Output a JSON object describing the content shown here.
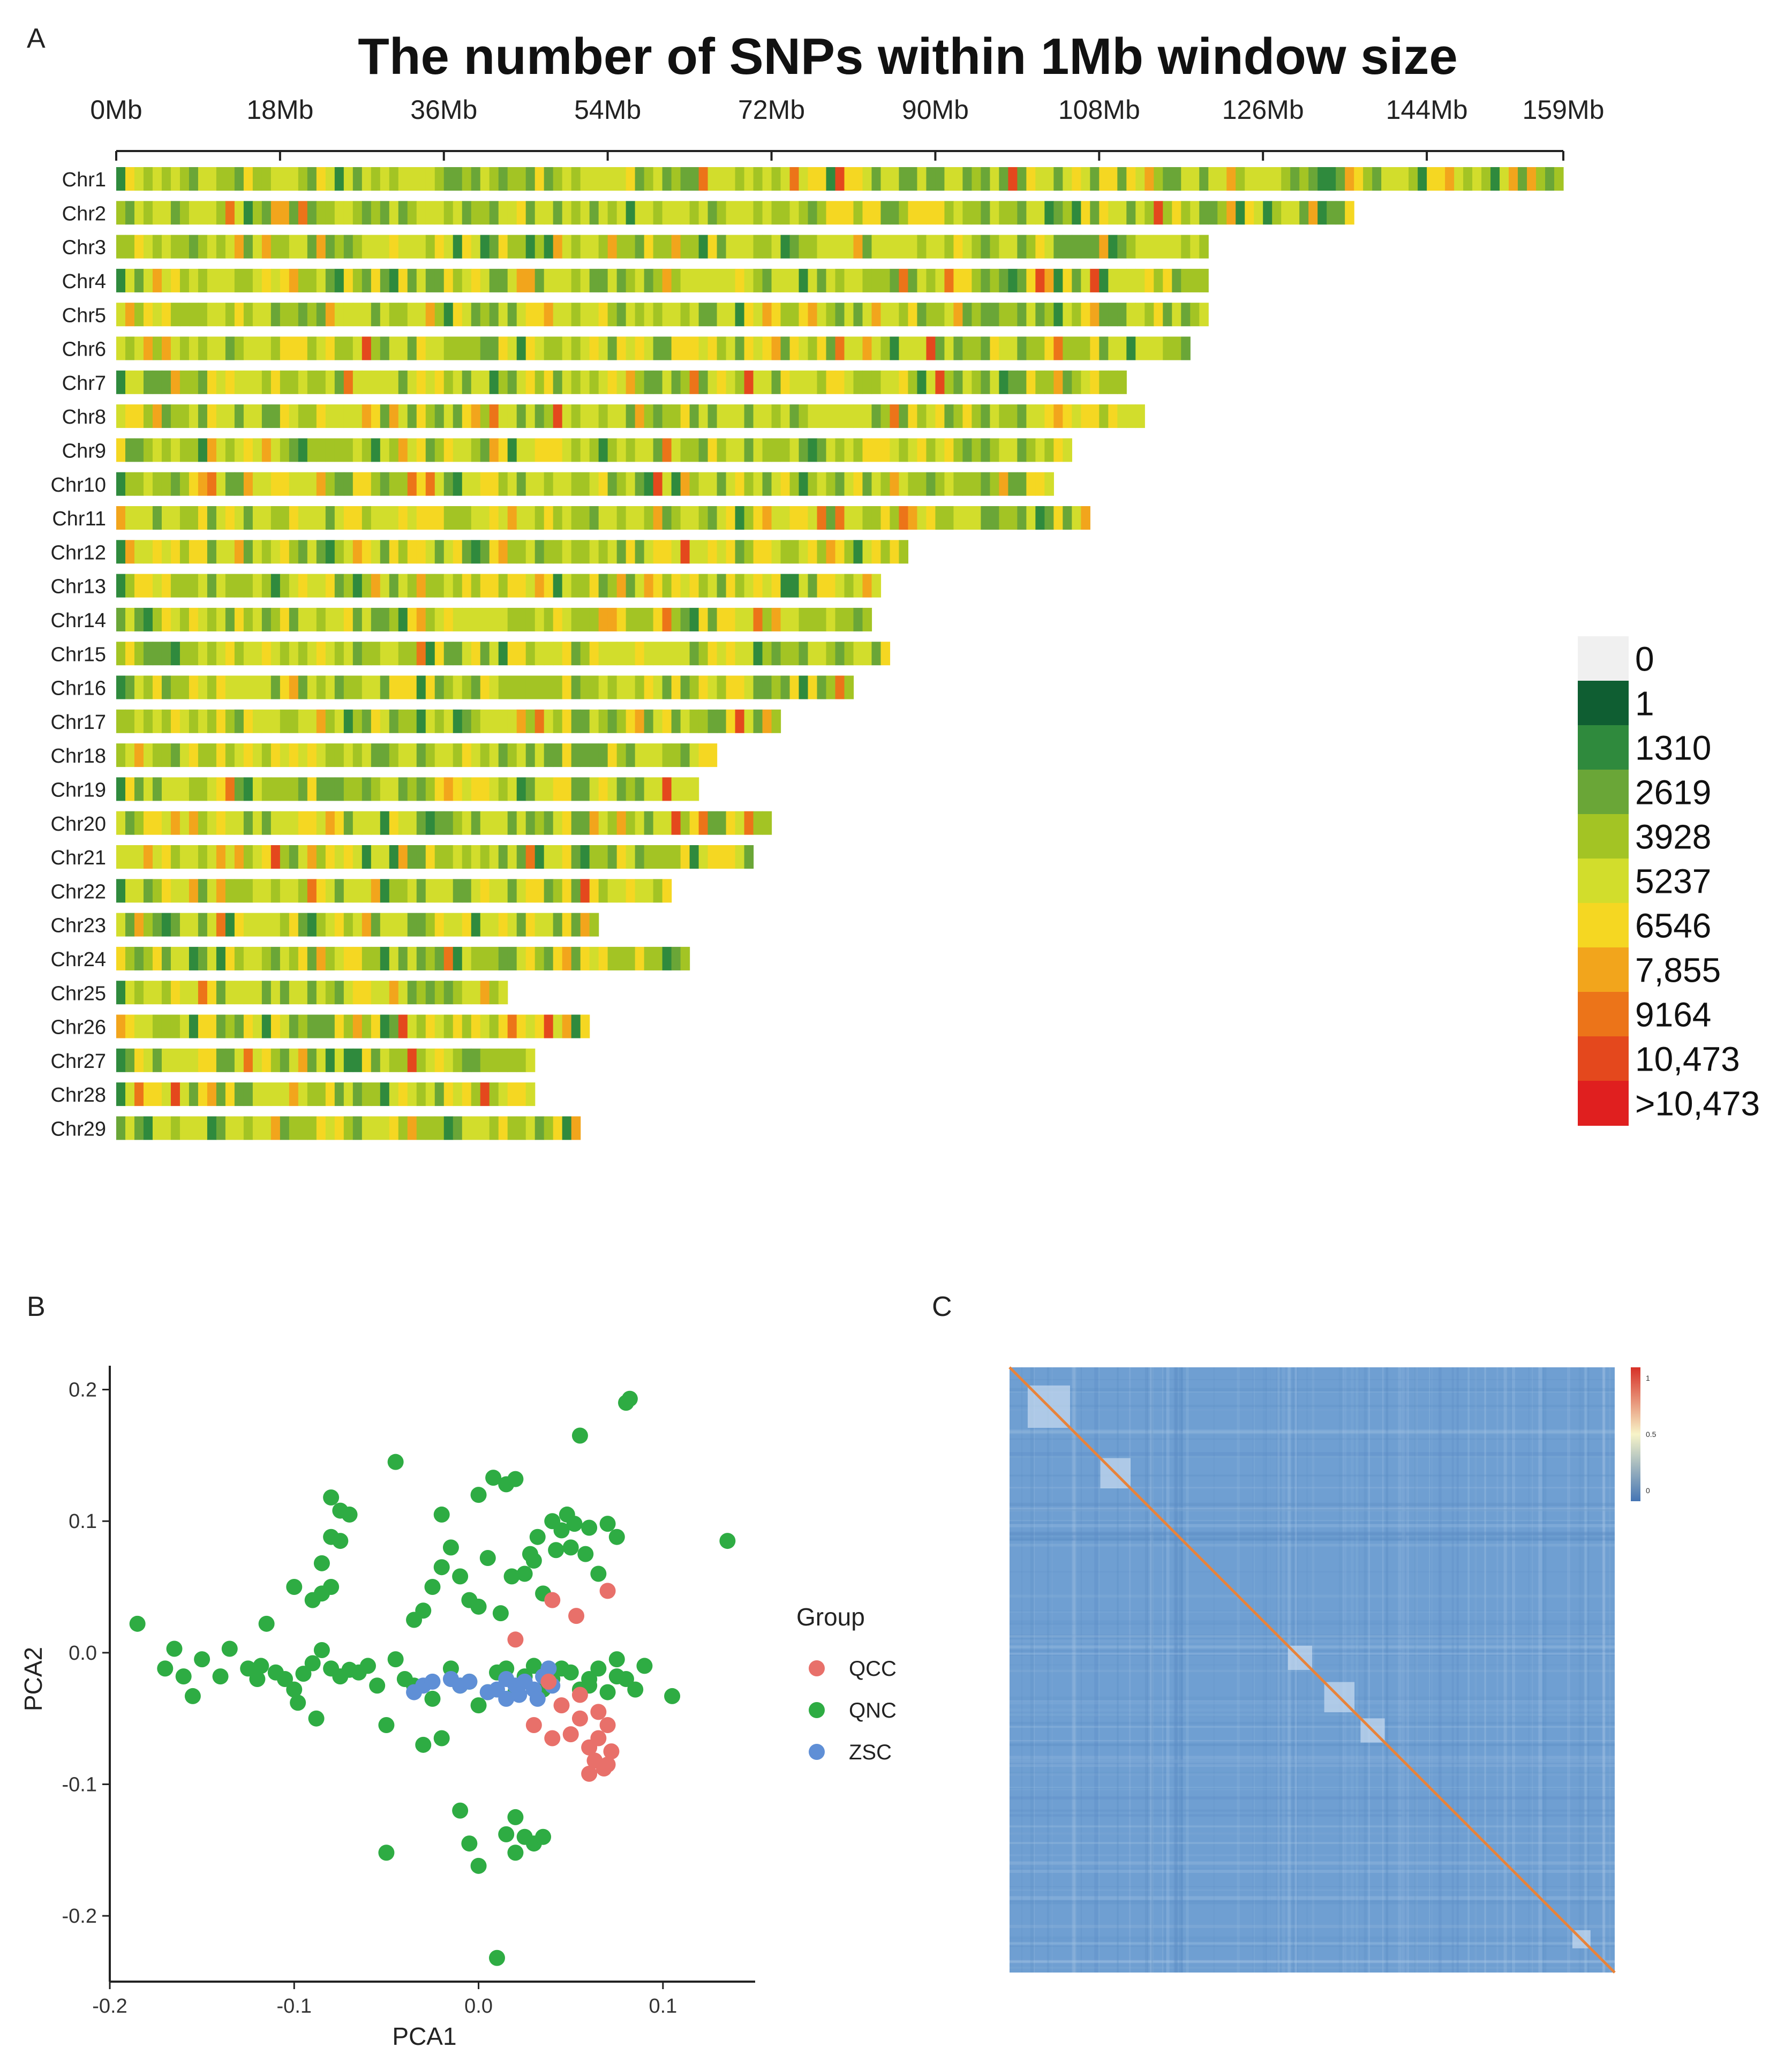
{
  "panels": {
    "a": {
      "letter": "A"
    },
    "b": {
      "letter": "B"
    },
    "c": {
      "letter": "C"
    }
  },
  "chart_data": [
    {
      "type": "heatmap",
      "title": "The number of SNPs within 1Mb window size",
      "x_ticks": [
        "0Mb",
        "18Mb",
        "36Mb",
        "54Mb",
        "72Mb",
        "90Mb",
        "108Mb",
        "126Mb",
        "144Mb",
        "159Mb"
      ],
      "x_tick_values_mb": [
        0,
        18,
        36,
        54,
        72,
        90,
        108,
        126,
        144,
        159
      ],
      "chromosomes": [
        "Chr1",
        "Chr2",
        "Chr3",
        "Chr4",
        "Chr5",
        "Chr6",
        "Chr7",
        "Chr8",
        "Chr9",
        "Chr10",
        "Chr11",
        "Chr12",
        "Chr13",
        "Chr14",
        "Chr15",
        "Chr16",
        "Chr17",
        "Chr18",
        "Chr19",
        "Chr20",
        "Chr21",
        "Chr22",
        "Chr23",
        "Chr24",
        "Chr25",
        "Chr26",
        "Chr27",
        "Chr28",
        "Chr29"
      ],
      "lengths_mb": [
        159,
        136,
        120,
        120,
        120,
        118,
        111,
        113,
        105,
        103,
        107,
        87,
        84,
        83,
        85,
        81,
        73,
        66,
        64,
        72,
        70,
        61,
        53,
        63,
        43,
        52,
        46,
        46,
        51
      ],
      "legend": {
        "labels": [
          "0",
          "1",
          "1310",
          "2619",
          "3928",
          "5237",
          "6546",
          "7,855",
          "9164",
          "10,473",
          ">10,473"
        ],
        "colors": [
          "#f0f0f0",
          "#0f5e32",
          "#2f8a3d",
          "#6aa637",
          "#a3c424",
          "#d2dd2c",
          "#f5d722",
          "#f2a51c",
          "#ec7419",
          "#e4481d",
          "#e01f1f"
        ],
        "placement": "right"
      }
    },
    {
      "type": "scatter",
      "xlabel": "PCA1",
      "ylabel": "PCA2",
      "xlim": [
        -0.2,
        0.15
      ],
      "ylim": [
        -0.25,
        0.21
      ],
      "x_ticks": [
        "-0.2",
        "-0.1",
        "0.0",
        "0.1"
      ],
      "x_tick_values": [
        -0.2,
        -0.1,
        0.0,
        0.1
      ],
      "y_ticks": [
        "-0.2",
        "-0.1",
        "0.0",
        "0.1",
        "0.2"
      ],
      "y_tick_values": [
        -0.2,
        -0.1,
        0.0,
        0.1,
        0.2
      ],
      "legend_title": "Group",
      "legend_placement": "right",
      "series": [
        {
          "name": "QCC",
          "color": "#e8706a",
          "points": [
            [
              0.04,
              0.04
            ],
            [
              0.07,
              0.047
            ],
            [
              0.053,
              0.028
            ],
            [
              0.02,
              0.01
            ],
            [
              0.038,
              -0.022
            ],
            [
              0.045,
              -0.04
            ],
            [
              0.055,
              -0.05
            ],
            [
              0.03,
              -0.055
            ],
            [
              0.05,
              -0.062
            ],
            [
              0.065,
              -0.065
            ],
            [
              0.07,
              -0.055
            ],
            [
              0.06,
              -0.072
            ],
            [
              0.072,
              -0.075
            ],
            [
              0.063,
              -0.082
            ],
            [
              0.07,
              -0.085
            ],
            [
              0.06,
              -0.092
            ],
            [
              0.068,
              -0.088
            ],
            [
              0.04,
              -0.065
            ],
            [
              0.055,
              -0.032
            ],
            [
              0.065,
              -0.045
            ]
          ]
        },
        {
          "name": "QNC",
          "color": "#2eac43",
          "points": [
            [
              -0.185,
              0.022
            ],
            [
              -0.17,
              -0.012
            ],
            [
              -0.165,
              0.003
            ],
            [
              -0.16,
              -0.018
            ],
            [
              -0.155,
              -0.033
            ],
            [
              -0.15,
              -0.005
            ],
            [
              -0.14,
              -0.018
            ],
            [
              -0.135,
              0.003
            ],
            [
              -0.125,
              -0.012
            ],
            [
              -0.12,
              -0.02
            ],
            [
              -0.118,
              -0.01
            ],
            [
              -0.115,
              0.022
            ],
            [
              -0.11,
              -0.015
            ],
            [
              -0.105,
              -0.02
            ],
            [
              -0.1,
              -0.028
            ],
            [
              -0.098,
              -0.038
            ],
            [
              -0.095,
              -0.016
            ],
            [
              -0.09,
              -0.008
            ],
            [
              -0.088,
              -0.05
            ],
            [
              -0.085,
              0.002
            ],
            [
              -0.08,
              -0.012
            ],
            [
              -0.075,
              -0.018
            ],
            [
              -0.07,
              -0.013
            ],
            [
              -0.065,
              -0.015
            ],
            [
              -0.06,
              -0.01
            ],
            [
              -0.055,
              -0.025
            ],
            [
              -0.05,
              -0.055
            ],
            [
              -0.045,
              -0.005
            ],
            [
              -0.04,
              -0.02
            ],
            [
              -0.1,
              0.05
            ],
            [
              -0.09,
              0.04
            ],
            [
              -0.085,
              0.045
            ],
            [
              -0.08,
              0.05
            ],
            [
              -0.085,
              0.068
            ],
            [
              -0.08,
              0.088
            ],
            [
              -0.075,
              0.085
            ],
            [
              -0.075,
              0.108
            ],
            [
              -0.07,
              0.105
            ],
            [
              -0.08,
              0.118
            ],
            [
              -0.045,
              0.145
            ],
            [
              -0.035,
              0.025
            ],
            [
              -0.03,
              0.032
            ],
            [
              -0.025,
              0.05
            ],
            [
              -0.02,
              0.065
            ],
            [
              -0.02,
              0.105
            ],
            [
              -0.015,
              0.08
            ],
            [
              -0.01,
              0.058
            ],
            [
              -0.005,
              0.04
            ],
            [
              0.0,
              0.035
            ],
            [
              0.0,
              0.12
            ],
            [
              0.005,
              0.072
            ],
            [
              0.008,
              0.133
            ],
            [
              0.012,
              0.03
            ],
            [
              0.015,
              0.128
            ],
            [
              0.018,
              0.058
            ],
            [
              0.02,
              0.132
            ],
            [
              0.025,
              0.06
            ],
            [
              0.028,
              0.075
            ],
            [
              0.03,
              0.07
            ],
            [
              0.032,
              0.088
            ],
            [
              0.035,
              0.045
            ],
            [
              0.04,
              0.1
            ],
            [
              0.042,
              0.078
            ],
            [
              0.045,
              0.093
            ],
            [
              0.048,
              0.105
            ],
            [
              0.05,
              0.08
            ],
            [
              0.052,
              0.098
            ],
            [
              0.055,
              0.165
            ],
            [
              0.058,
              0.075
            ],
            [
              0.06,
              0.095
            ],
            [
              0.065,
              0.06
            ],
            [
              0.07,
              0.098
            ],
            [
              0.075,
              0.088
            ],
            [
              0.08,
              0.19
            ],
            [
              0.082,
              0.193
            ],
            [
              0.135,
              0.085
            ],
            [
              -0.03,
              -0.07
            ],
            [
              -0.02,
              -0.065
            ],
            [
              -0.01,
              -0.025
            ],
            [
              0.0,
              -0.04
            ],
            [
              0.01,
              -0.015
            ],
            [
              0.02,
              -0.03
            ],
            [
              0.03,
              -0.01
            ],
            [
              0.04,
              -0.02
            ],
            [
              0.05,
              -0.015
            ],
            [
              0.06,
              -0.02
            ],
            [
              0.07,
              -0.03
            ],
            [
              0.08,
              -0.02
            ],
            [
              0.09,
              -0.01
            ],
            [
              0.105,
              -0.033
            ],
            [
              0.06,
              -0.025
            ],
            [
              0.02,
              -0.125
            ],
            [
              0.025,
              -0.14
            ],
            [
              0.03,
              -0.145
            ],
            [
              0.015,
              -0.138
            ],
            [
              0.02,
              -0.152
            ],
            [
              0.035,
              -0.14
            ],
            [
              -0.05,
              -0.152
            ],
            [
              -0.01,
              -0.12
            ],
            [
              -0.005,
              -0.145
            ],
            [
              0.0,
              -0.162
            ],
            [
              0.01,
              -0.232
            ],
            [
              -0.035,
              -0.025
            ],
            [
              -0.025,
              -0.035
            ],
            [
              0.015,
              -0.012
            ],
            [
              0.045,
              -0.012
            ],
            [
              0.055,
              -0.028
            ],
            [
              0.065,
              -0.012
            ],
            [
              0.075,
              -0.018
            ],
            [
              0.085,
              -0.028
            ],
            [
              -0.015,
              -0.012
            ],
            [
              -0.005,
              -0.022
            ],
            [
              0.005,
              -0.03
            ],
            [
              0.025,
              -0.018
            ],
            [
              0.035,
              -0.028
            ],
            [
              0.075,
              -0.005
            ]
          ]
        },
        {
          "name": "ZSC",
          "color": "#5f8fd6",
          "points": [
            [
              -0.035,
              -0.03
            ],
            [
              -0.03,
              -0.025
            ],
            [
              -0.025,
              -0.022
            ],
            [
              -0.015,
              -0.02
            ],
            [
              -0.01,
              -0.025
            ],
            [
              -0.005,
              -0.022
            ],
            [
              0.005,
              -0.03
            ],
            [
              0.01,
              -0.028
            ],
            [
              0.015,
              -0.02
            ],
            [
              0.02,
              -0.025
            ],
            [
              0.025,
              -0.022
            ],
            [
              0.03,
              -0.028
            ],
            [
              0.035,
              -0.018
            ],
            [
              0.038,
              -0.012
            ],
            [
              0.032,
              -0.035
            ],
            [
              0.022,
              -0.032
            ],
            [
              0.015,
              -0.035
            ],
            [
              0.04,
              -0.025
            ]
          ]
        }
      ]
    },
    {
      "type": "heatmap",
      "colorbar_ticks": [
        "1",
        "0.5",
        "0"
      ],
      "colorbar_tick_values": [
        1,
        0.5,
        0
      ],
      "colorbar_colors": [
        "#d73027",
        "#f7f4c8",
        "#4575b4"
      ]
    }
  ]
}
